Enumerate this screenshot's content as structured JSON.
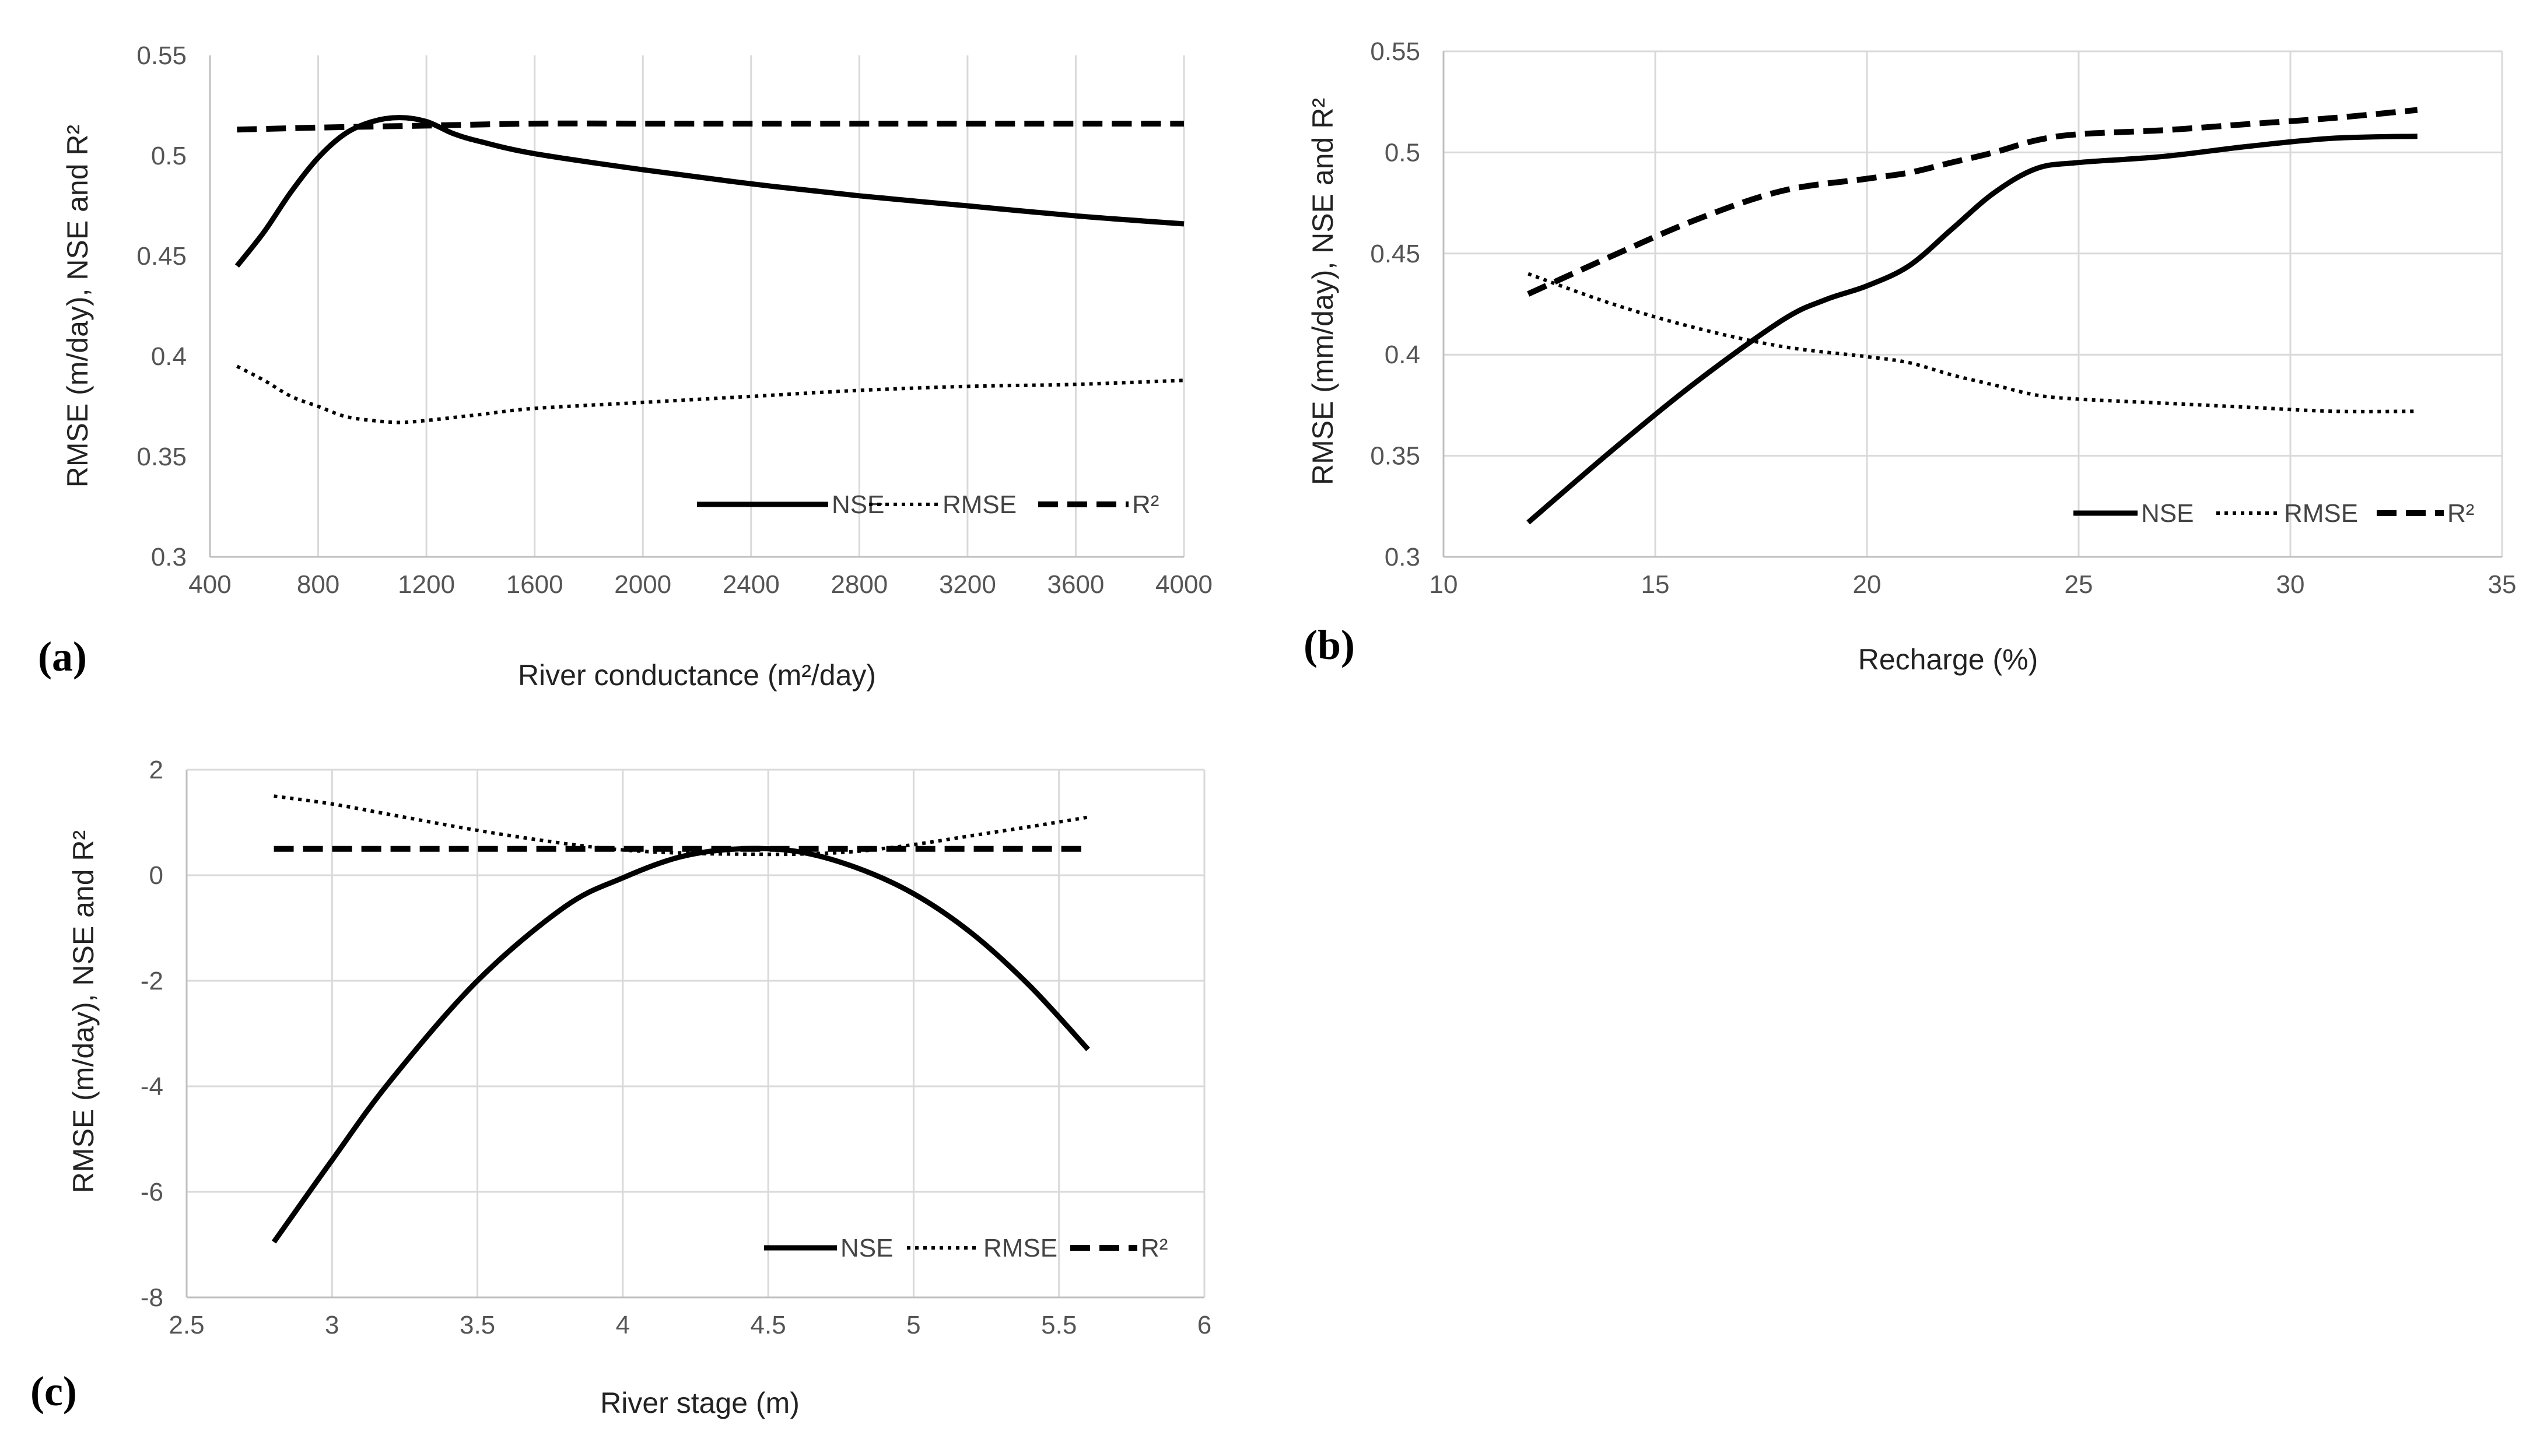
{
  "chart_data": [
    {
      "type": "line",
      "panel_label": "(a)",
      "title": "",
      "xlabel": "River conductance (m²/day)",
      "ylabel": "RMSE (m/day), NSE and R²",
      "xlim": [
        400,
        4000
      ],
      "ylim": [
        0.3,
        0.55
      ],
      "xticks": [
        400,
        800,
        1200,
        1600,
        2000,
        2400,
        2800,
        3200,
        3600,
        4000
      ],
      "yticks": [
        0.3,
        0.35,
        0.4,
        0.45,
        0.5,
        0.55
      ],
      "ytick_labels": [
        "0.3",
        "0.35",
        "0.4",
        "0.45",
        "0.5",
        "0.55"
      ],
      "grid": "vertical",
      "legend": "bottom-right",
      "series": [
        {
          "name": "NSE",
          "style": "solid",
          "x": [
            500,
            600,
            700,
            800,
            900,
            1000,
            1100,
            1200,
            1300,
            1400,
            1600,
            2000,
            2400,
            2800,
            3200,
            3600,
            4000
          ],
          "y": [
            0.445,
            0.462,
            0.482,
            0.499,
            0.511,
            0.517,
            0.519,
            0.517,
            0.511,
            0.507,
            0.501,
            0.493,
            0.486,
            0.48,
            0.475,
            0.47,
            0.466
          ]
        },
        {
          "name": "RMSE",
          "style": "dotted",
          "x": [
            500,
            600,
            700,
            800,
            900,
            1000,
            1100,
            1200,
            1400,
            1600,
            2000,
            2400,
            2800,
            3200,
            3600,
            4000
          ],
          "y": [
            0.395,
            0.388,
            0.38,
            0.375,
            0.37,
            0.368,
            0.367,
            0.368,
            0.371,
            0.374,
            0.377,
            0.38,
            0.383,
            0.385,
            0.386,
            0.388
          ]
        },
        {
          "name": "R²",
          "style": "dashed",
          "x": [
            500,
            800,
            1200,
            1600,
            2000,
            2400,
            2800,
            3200,
            3600,
            4000
          ],
          "y": [
            0.513,
            0.514,
            0.515,
            0.516,
            0.516,
            0.516,
            0.516,
            0.516,
            0.516,
            0.516
          ]
        }
      ]
    },
    {
      "type": "line",
      "panel_label": "(b)",
      "title": "",
      "xlabel": "Recharge (%)",
      "ylabel": "RMSE (mm/day), NSE and R²",
      "xlim": [
        10,
        35
      ],
      "ylim": [
        0.3,
        0.55
      ],
      "xticks": [
        10,
        15,
        20,
        25,
        30,
        35
      ],
      "yticks": [
        0.3,
        0.35,
        0.4,
        0.45,
        0.5,
        0.55
      ],
      "ytick_labels": [
        "0.3",
        "0.35",
        "0.4",
        "0.45",
        "0.5",
        "0.55"
      ],
      "grid": "both",
      "legend": "bottom-right",
      "series": [
        {
          "name": "NSE",
          "style": "solid",
          "x": [
            12,
            14,
            16,
            18,
            19,
            20,
            21,
            22,
            23,
            24,
            25,
            27,
            29,
            31,
            33
          ],
          "y": [
            0.317,
            0.353,
            0.387,
            0.417,
            0.427,
            0.434,
            0.444,
            0.462,
            0.48,
            0.492,
            0.495,
            0.498,
            0.503,
            0.507,
            0.508
          ]
        },
        {
          "name": "RMSE",
          "style": "dotted",
          "x": [
            12,
            14,
            16,
            18,
            20,
            21,
            22,
            23,
            24,
            25,
            27,
            29,
            31,
            33
          ],
          "y": [
            0.44,
            0.425,
            0.413,
            0.404,
            0.399,
            0.396,
            0.39,
            0.385,
            0.38,
            0.378,
            0.376,
            0.374,
            0.372,
            0.372
          ]
        },
        {
          "name": "R²",
          "style": "dashed",
          "x": [
            12,
            14,
            16,
            18,
            20,
            21,
            22,
            23,
            24,
            25,
            27,
            29,
            31,
            33
          ],
          "y": [
            0.43,
            0.449,
            0.467,
            0.481,
            0.487,
            0.49,
            0.495,
            0.5,
            0.506,
            0.509,
            0.511,
            0.514,
            0.517,
            0.521
          ]
        }
      ]
    },
    {
      "type": "line",
      "panel_label": "(c)",
      "title": "",
      "xlabel": "River stage (m)",
      "ylabel": "RMSE (m/day), NSE and R²",
      "xlim": [
        2.5,
        6
      ],
      "ylim": [
        -8,
        2
      ],
      "xticks": [
        2.5,
        3,
        3.5,
        4,
        4.5,
        5,
        5.5,
        6
      ],
      "yticks": [
        -8,
        -6,
        -4,
        -2,
        0,
        2
      ],
      "ytick_labels": [
        "-8",
        "-6",
        "-4",
        "-2",
        "0",
        "2"
      ],
      "grid": "both",
      "legend": "bottom-right",
      "series": [
        {
          "name": "NSE",
          "style": "solid",
          "x": [
            2.8,
            3.0,
            3.2,
            3.5,
            3.8,
            4.0,
            4.2,
            4.4,
            4.6,
            4.8,
            5.0,
            5.2,
            5.4,
            5.6
          ],
          "y": [
            -6.95,
            -5.4,
            -3.9,
            -2.0,
            -0.6,
            -0.05,
            0.35,
            0.5,
            0.45,
            0.15,
            -0.35,
            -1.1,
            -2.1,
            -3.3
          ]
        },
        {
          "name": "RMSE",
          "style": "dotted",
          "x": [
            2.8,
            3.0,
            3.2,
            3.5,
            3.8,
            4.0,
            4.2,
            4.4,
            4.6,
            4.8,
            5.0,
            5.2,
            5.4,
            5.6
          ],
          "y": [
            1.5,
            1.35,
            1.15,
            0.85,
            0.6,
            0.48,
            0.42,
            0.4,
            0.4,
            0.45,
            0.58,
            0.75,
            0.92,
            1.1
          ]
        },
        {
          "name": "R²",
          "style": "dashed",
          "x": [
            2.8,
            3.2,
            3.6,
            4.0,
            4.4,
            4.8,
            5.2,
            5.6
          ],
          "y": [
            0.5,
            0.5,
            0.5,
            0.5,
            0.5,
            0.5,
            0.5,
            0.5
          ]
        }
      ]
    }
  ]
}
